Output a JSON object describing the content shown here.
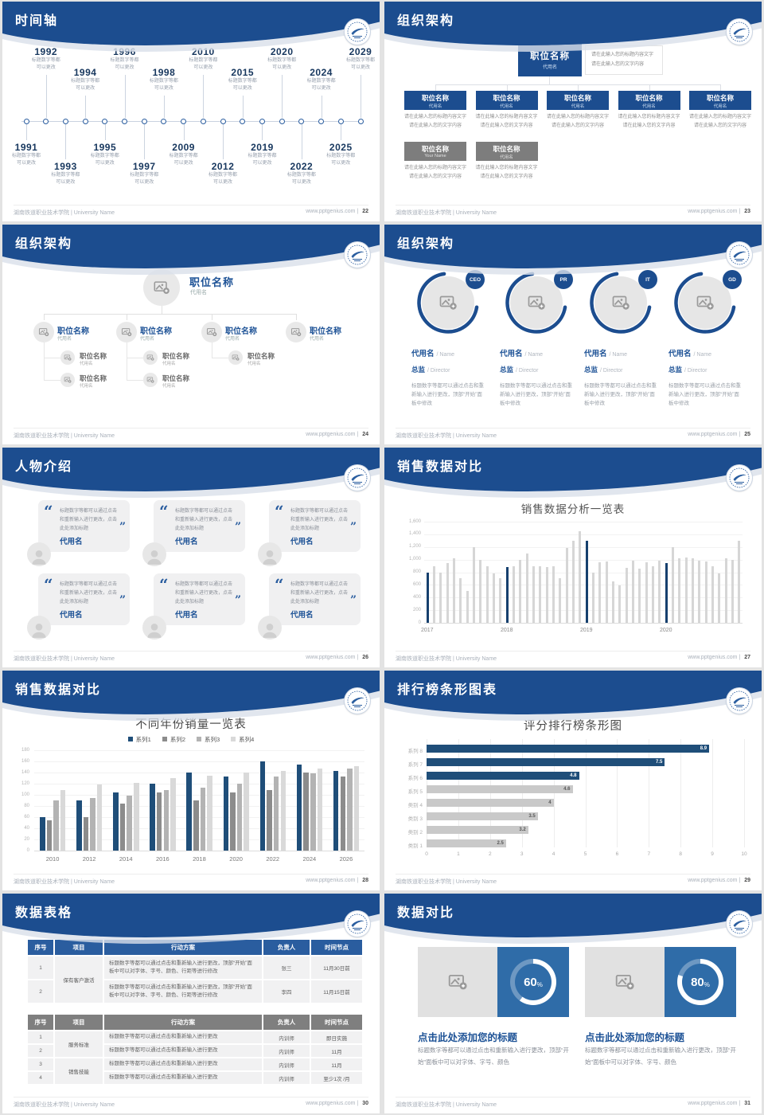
{
  "theme": {
    "header_blue": "#1c4d8f",
    "accent_blue": "#1d5296",
    "navy_bar": "#1f4e79",
    "light_bar": "#d6d6d6",
    "panel_blue": "#2f6ca8",
    "table_header_blue": "#2a5d9f",
    "table_header_gray": "#7f7f7f"
  },
  "footer": {
    "school": "湖南铁道职业技术学院 | University Name",
    "site": "www.pptgenius.com",
    "sep": "|"
  },
  "slides": {
    "timeline": {
      "page": "22",
      "title": "时间轴",
      "caption_lines": [
        "标题数字等都",
        "可以更改"
      ],
      "points": [
        {
          "year": "1991",
          "side": "bottom"
        },
        {
          "year": "1992",
          "side": "top"
        },
        {
          "year": "1993",
          "side": "bottom"
        },
        {
          "year": "1994",
          "side": "top"
        },
        {
          "year": "1995",
          "side": "bottom"
        },
        {
          "year": "1996",
          "side": "top"
        },
        {
          "year": "1997",
          "side": "bottom"
        },
        {
          "year": "1998",
          "side": "top"
        },
        {
          "year": "2009",
          "side": "bottom"
        },
        {
          "year": "2010",
          "side": "top"
        },
        {
          "year": "2012",
          "side": "bottom"
        },
        {
          "year": "2015",
          "side": "top"
        },
        {
          "year": "2019",
          "side": "bottom"
        },
        {
          "year": "2020",
          "side": "top"
        },
        {
          "year": "2022",
          "side": "bottom"
        },
        {
          "year": "2024",
          "side": "top"
        },
        {
          "year": "2025",
          "side": "bottom"
        },
        {
          "year": "2029",
          "side": "top"
        }
      ]
    },
    "org_boxes": {
      "page": "23",
      "title": "组织架构",
      "root": {
        "title": "职位名称",
        "sub": "代用名"
      },
      "root_note": [
        "请在此输入您的标题内容文字",
        "请在此输入您的文字内容"
      ],
      "note_lines": [
        "请在此输入您的标题内容文字",
        "请在此输入您的文字内容"
      ],
      "level1": [
        {
          "title": "职位名称",
          "sub": "代用名"
        },
        {
          "title": "职位名称",
          "sub": "代用名"
        },
        {
          "title": "职位名称",
          "sub": "代用名"
        },
        {
          "title": "职位名称",
          "sub": "代用名"
        },
        {
          "title": "职位名称",
          "sub": "代用名"
        }
      ],
      "level2": [
        {
          "title": "职位名称",
          "sub": "Your Name"
        },
        {
          "title": "职位名称",
          "sub": "代用名"
        }
      ]
    },
    "org_photos": {
      "page": "24",
      "title": "组织架构",
      "root": {
        "title": "职位名称",
        "sub": "代用名"
      },
      "children": [
        {
          "title": "职位名称",
          "sub": "代用名",
          "subs": 2
        },
        {
          "title": "职位名称",
          "sub": "代用名",
          "subs": 2
        },
        {
          "title": "职位名称",
          "sub": "代用名",
          "subs": 1
        },
        {
          "title": "职位名称",
          "sub": "代用名",
          "subs": 0
        }
      ],
      "sub_item": {
        "title": "职位名称",
        "sub": "代用名"
      }
    },
    "org_circles": {
      "page": "25",
      "title": "组织架构",
      "profiles": [
        {
          "badge": "CEO",
          "name": "代用名",
          "name_en": "/ Name",
          "role": "总监",
          "role_en": "/ Director",
          "desc": "标题数字等都可以通过点击和重新输入进行更改，顶部“开始”面板中修改"
        },
        {
          "badge": "PR",
          "name": "代用名",
          "name_en": "/ Name",
          "role": "总监",
          "role_en": "/ Director",
          "desc": "标题数字等都可以通过点击和重新输入进行更改，顶部“开始”面板中修改"
        },
        {
          "badge": "IT",
          "name": "代用名",
          "name_en": "/ Name",
          "role": "总监",
          "role_en": "/ Director",
          "desc": "标题数字等都可以通过点击和重新输入进行更改，顶部“开始”面板中修改"
        },
        {
          "badge": "GD",
          "name": "代用名",
          "name_en": "/ Name",
          "role": "总监",
          "role_en": "/ Director",
          "desc": "标题数字等都可以通过点击和重新输入进行更改，顶部“开始”面板中修改"
        }
      ]
    },
    "people": {
      "page": "26",
      "title": "人物介绍",
      "cards": [
        {
          "quote": "标题数字等都可以通过点击和重新输入进行更改，点击此处添加标题",
          "name": "代用名"
        },
        {
          "quote": "标题数字等都可以通过点击和重新输入进行更改，点击此处添加标题",
          "name": "代用名"
        },
        {
          "quote": "标题数字等都可以通过点击和重新输入进行更改，点击此处添加标题",
          "name": "代用名"
        },
        {
          "quote": "标题数字等都可以通过点击和重新输入进行更改，点击此处添加标题",
          "name": "代用名"
        },
        {
          "quote": "标题数字等都可以通过点击和重新输入进行更改，点击此处添加标题",
          "name": "代用名"
        },
        {
          "quote": "标题数字等都可以通过点击和重新输入进行更改，点击此处添加标题",
          "name": "代用名"
        }
      ]
    },
    "sales_monthly": {
      "page": "27",
      "title": "销售数据对比"
    },
    "sales_years": {
      "page": "28",
      "title": "销售数据对比"
    },
    "ranking": {
      "page": "29",
      "title": "排行榜条形图表"
    },
    "tables": {
      "page": "30",
      "title": "数据表格",
      "headers": [
        "序号",
        "项目",
        "行动方案",
        "负责人",
        "时间节点"
      ],
      "table1": {
        "rows": [
          {
            "no": "1",
            "project": "保有客户激活",
            "action": "标题数字等都可以通过点击和重新输入进行更改，顶部“开始”面板中可以对字体、字号、颜色、行距等进行修改",
            "owner": "张三",
            "due": "11月30日前"
          },
          {
            "no": "2",
            "project": "",
            "action": "标题数字等都可以通过点击和重新输入进行更改，顶部“开始”面板中可以对字体、字号、颜色、行距等进行修改",
            "owner": "李四",
            "due": "11月15日前"
          }
        ]
      },
      "table2": {
        "rows": [
          {
            "no": "1",
            "project": "服务标准",
            "action": "标题数字等都可以通过点击和重新输入进行更改",
            "owner": "内训师",
            "due": "即日实施"
          },
          {
            "no": "2",
            "project": "",
            "action": "标题数字等都可以通过点击和重新输入进行更改",
            "owner": "内训师",
            "due": "11月"
          },
          {
            "no": "3",
            "project": "销售技能",
            "action": "标题数字等都可以通过点击和重新输入进行更改",
            "owner": "内训师",
            "due": "11月"
          },
          {
            "no": "4",
            "project": "",
            "action": "标题数字等都可以通过点击和重新输入进行更改",
            "owner": "内训师",
            "due": "至少1次 /月"
          }
        ]
      }
    },
    "compare": {
      "page": "31",
      "title": "数据对比",
      "panels": [
        {
          "percent": 60,
          "percent_label": "60",
          "title": "点击此处添加您的标题",
          "desc": "标题数字等都可以通过点击和重新输入进行更改，顶部“开始”面板中可以对字体、字号、颜色"
        },
        {
          "percent": 80,
          "percent_label": "80",
          "title": "点击此处添加您的标题",
          "desc": "标题数字等都可以通过点击和重新输入进行更改，顶部“开始”面板中可以对字体、字号、颜色"
        }
      ]
    }
  },
  "chart_data": [
    {
      "id": "sales_monthly",
      "type": "bar",
      "title": "销售数据分析一览表",
      "x_groups": [
        "2017",
        "2018",
        "2019",
        "2020"
      ],
      "values": [
        800,
        900,
        800,
        950,
        1020,
        700,
        500,
        1200,
        990,
        890,
        780,
        700,
        880,
        900,
        1000,
        1100,
        900,
        900,
        880,
        900,
        700,
        1190,
        1300,
        1450,
        1300,
        800,
        960,
        970,
        660,
        590,
        870,
        980,
        860,
        960,
        890,
        980,
        950,
        1200,
        1020,
        1030,
        1020,
        980,
        970,
        890,
        780,
        1020,
        1000,
        1300
      ],
      "highlight_every": 12,
      "ylim": [
        0,
        1600
      ],
      "yticks": [
        "0",
        "200",
        "400",
        "600",
        "800",
        "1,000",
        "1,200",
        "1,400",
        "1,600"
      ],
      "colors": {
        "highlight": "#16406e",
        "normal": "#d6d6d6"
      },
      "legend": false,
      "grid": true
    },
    {
      "id": "sales_by_year",
      "type": "bar",
      "title": "不同年份销量一览表",
      "categories": [
        "2010",
        "2012",
        "2014",
        "2016",
        "2018",
        "2020",
        "2022",
        "2024",
        "2026"
      ],
      "series": [
        {
          "name": "系列1",
          "color": "#1f4e79",
          "values": [
            60,
            90,
            105,
            120,
            140,
            133,
            160,
            155,
            143
          ]
        },
        {
          "name": "系列2",
          "color": "#8c8c8c",
          "values": [
            55,
            60,
            85,
            105,
            90,
            105,
            108,
            140,
            133
          ]
        },
        {
          "name": "系列3",
          "color": "#b3b3b3",
          "values": [
            90,
            95,
            98,
            108,
            113,
            120,
            133,
            138,
            147
          ]
        },
        {
          "name": "系列4",
          "color": "#d9d9d9",
          "values": [
            108,
            118,
            122,
            130,
            135,
            140,
            143,
            147,
            152
          ]
        }
      ],
      "ylim": [
        0,
        180
      ],
      "yticks": [
        "0",
        "20",
        "40",
        "60",
        "80",
        "100",
        "120",
        "140",
        "160",
        "180"
      ],
      "legend_position": "top",
      "grid": true
    },
    {
      "id": "ranking",
      "type": "bar-horizontal",
      "title": "评分排行榜条形图",
      "categories": [
        "系列 8",
        "系列 7",
        "系列 6",
        "系列 5",
        "类别 4",
        "类别 3",
        "类别 2",
        "类别 1"
      ],
      "values": [
        8.9,
        7.5,
        4.8,
        4.6,
        4,
        3.5,
        3.2,
        2.5
      ],
      "value_labels": [
        "8.9",
        "7.5",
        "4.8",
        "4.6",
        "4",
        "3.5",
        "3.2",
        "2.5"
      ],
      "bar_colors": [
        "#1f4e79",
        "#1f4e79",
        "#1f4e79",
        "#c9c9c9",
        "#c9c9c9",
        "#c9c9c9",
        "#c9c9c9",
        "#c9c9c9"
      ],
      "xlim": [
        0,
        10
      ],
      "xticks": [
        "0",
        "1",
        "2",
        "3",
        "4",
        "5",
        "6",
        "7",
        "8",
        "9",
        "10"
      ],
      "grid": true
    }
  ]
}
